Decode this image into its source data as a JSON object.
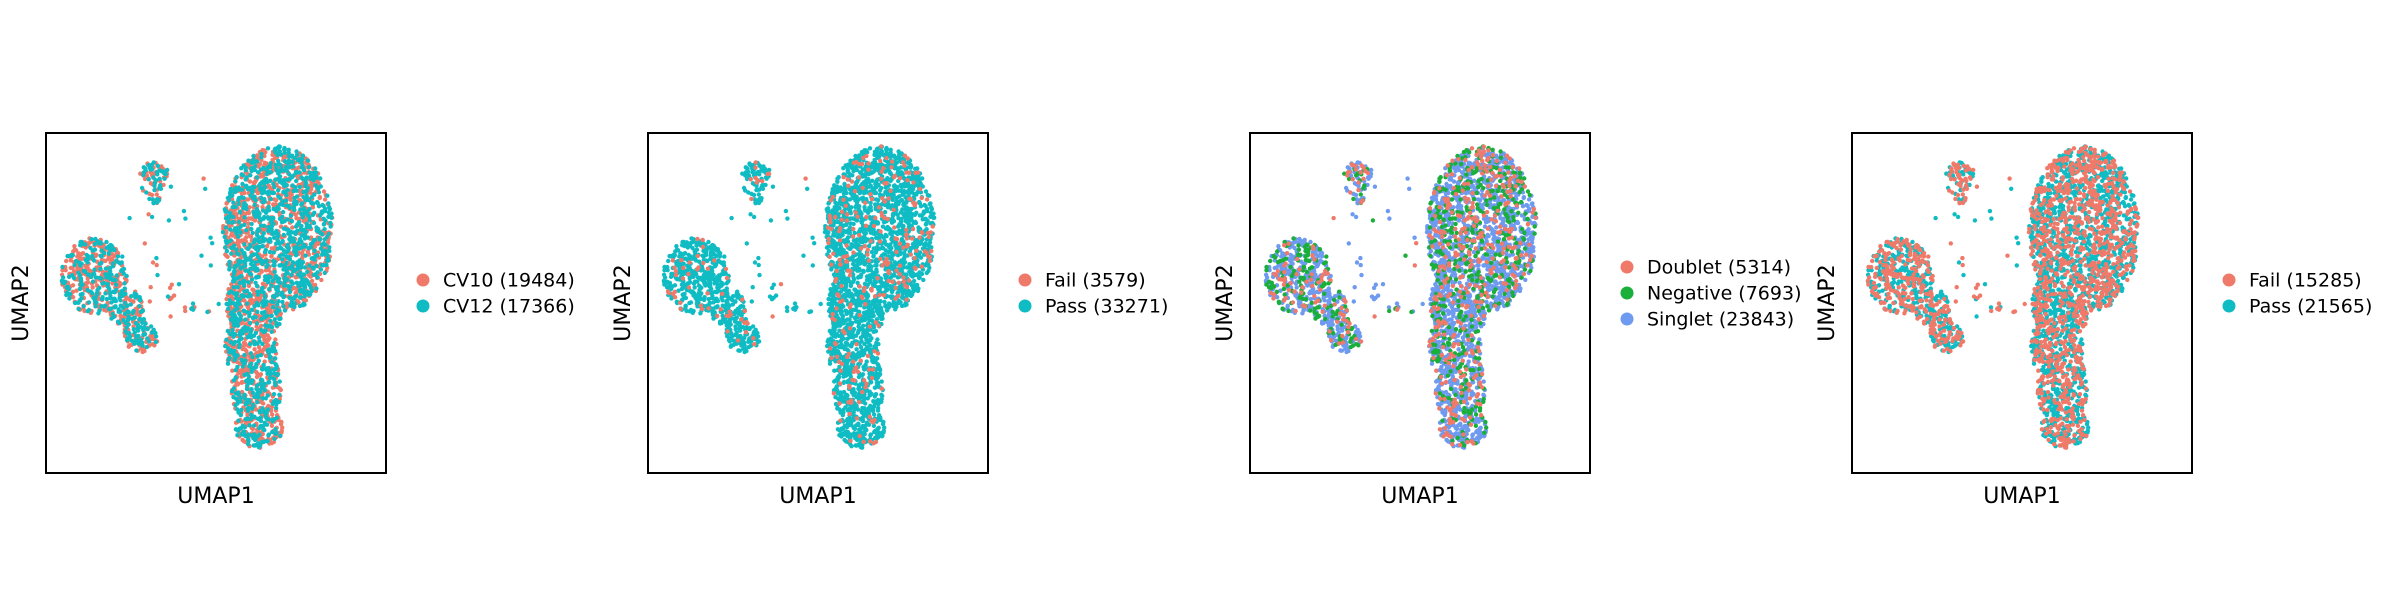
{
  "figure": {
    "background": "#ffffff"
  },
  "chart_data": [
    {
      "type": "scatter",
      "title": "",
      "xlabel": "UMAP1",
      "ylabel": "UMAP2",
      "grid": false,
      "legend_placement": "right",
      "series": [
        {
          "name": "CV10 (19484)",
          "color": "#f07a6a",
          "count": 19484
        },
        {
          "name": "CV12 (17366)",
          "color": "#10bcc4",
          "count": 17366
        }
      ]
    },
    {
      "type": "scatter",
      "title": "",
      "xlabel": "UMAP1",
      "ylabel": "UMAP2",
      "grid": false,
      "legend_placement": "right",
      "series": [
        {
          "name": "Fail (3579)",
          "color": "#f07a6a",
          "count": 3579
        },
        {
          "name": "Pass (33271)",
          "color": "#10bcc4",
          "count": 33271
        }
      ]
    },
    {
      "type": "scatter",
      "title": "",
      "xlabel": "UMAP1",
      "ylabel": "UMAP2",
      "grid": false,
      "legend_placement": "right",
      "series": [
        {
          "name": "Doublet (5314)",
          "color": "#f07a6a",
          "count": 5314
        },
        {
          "name": "Negative (7693)",
          "color": "#1aaf3a",
          "count": 7693
        },
        {
          "name": "Singlet (23843)",
          "color": "#6e9af0",
          "count": 23843
        }
      ]
    },
    {
      "type": "scatter",
      "title": "",
      "xlabel": "UMAP1",
      "ylabel": "UMAP2",
      "grid": false,
      "legend_placement": "right",
      "series": [
        {
          "name": "Fail (15285)",
          "color": "#f07a6a",
          "count": 15285
        },
        {
          "name": "Pass (21565)",
          "color": "#10bcc4",
          "count": 21565
        }
      ]
    }
  ]
}
